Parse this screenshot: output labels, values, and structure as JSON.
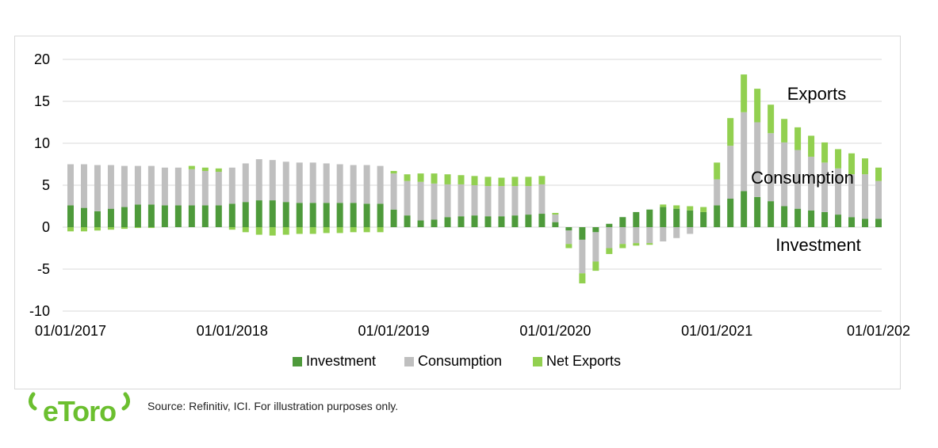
{
  "chart_data": {
    "type": "bar",
    "stacked": true,
    "ylim": [
      -10,
      20
    ],
    "yticks": [
      20,
      15,
      10,
      5,
      0,
      -5,
      -10
    ],
    "grid": true,
    "legend_position": "bottom",
    "xtick_labels": [
      "01/01/2017",
      "01/01/2018",
      "01/01/2019",
      "01/01/2020",
      "01/01/2021",
      "01/01/202"
    ],
    "xtick_indices": [
      0,
      12,
      24,
      36,
      48,
      60
    ],
    "annotations": [
      "Exports",
      "Consumption",
      "Investment"
    ],
    "series": [
      {
        "name": "Investment",
        "color": "#4e9a3b",
        "values": [
          2.6,
          2.3,
          1.9,
          2.2,
          2.4,
          2.7,
          2.7,
          2.6,
          2.6,
          2.6,
          2.6,
          2.6,
          2.8,
          3.0,
          3.2,
          3.2,
          3.0,
          2.9,
          2.9,
          2.9,
          2.9,
          2.9,
          2.8,
          2.8,
          2.1,
          1.4,
          0.8,
          0.9,
          1.2,
          1.3,
          1.4,
          1.3,
          1.3,
          1.4,
          1.5,
          1.6,
          0.6,
          -0.4,
          -1.5,
          -0.6,
          0.4,
          1.2,
          1.8,
          2.1,
          2.4,
          2.2,
          2.0,
          1.8,
          2.6,
          3.4,
          4.3,
          3.6,
          3.1,
          2.5,
          2.2,
          2.0,
          1.8,
          1.5,
          1.2,
          1.0,
          1.0
        ]
      },
      {
        "name": "Consumption",
        "color": "#bfbfbf",
        "values": [
          4.9,
          5.2,
          5.5,
          5.2,
          4.9,
          4.6,
          4.6,
          4.5,
          4.5,
          4.3,
          4.1,
          4.0,
          4.3,
          4.6,
          4.9,
          4.8,
          4.8,
          4.8,
          4.8,
          4.7,
          4.6,
          4.5,
          4.6,
          4.5,
          4.3,
          4.1,
          4.6,
          4.3,
          3.9,
          3.8,
          3.6,
          3.6,
          3.6,
          3.5,
          3.4,
          3.5,
          0.9,
          -1.6,
          -4.0,
          -3.5,
          -2.5,
          -2.0,
          -1.9,
          -1.9,
          -1.7,
          -1.3,
          -0.8,
          0.0,
          3.1,
          6.3,
          9.4,
          8.9,
          8.1,
          7.6,
          7.0,
          6.4,
          5.9,
          5.5,
          5.1,
          5.3,
          4.5
        ]
      },
      {
        "name": "Net Exports",
        "color": "#92d050",
        "values": [
          -0.5,
          -0.5,
          -0.4,
          -0.3,
          -0.2,
          -0.1,
          -0.1,
          0.0,
          0.0,
          0.4,
          0.4,
          0.4,
          -0.3,
          -0.6,
          -0.9,
          -1.0,
          -0.9,
          -0.8,
          -0.8,
          -0.7,
          -0.7,
          -0.6,
          -0.6,
          -0.6,
          0.3,
          0.8,
          1.0,
          1.2,
          1.2,
          1.1,
          1.1,
          1.1,
          1.0,
          1.1,
          1.1,
          1.0,
          0.2,
          -0.5,
          -1.2,
          -1.1,
          -0.7,
          -0.5,
          -0.3,
          -0.2,
          0.3,
          0.4,
          0.5,
          0.6,
          2.0,
          3.3,
          4.5,
          4.0,
          3.4,
          2.8,
          2.7,
          2.5,
          2.4,
          2.3,
          2.5,
          1.9,
          1.6
        ]
      }
    ]
  },
  "brand": {
    "name": "eToro",
    "logo_text": "eToro",
    "color": "#6bbf2f"
  },
  "footer": {
    "source": "Source: Refinitiv, ICI. For illustration purposes only."
  }
}
